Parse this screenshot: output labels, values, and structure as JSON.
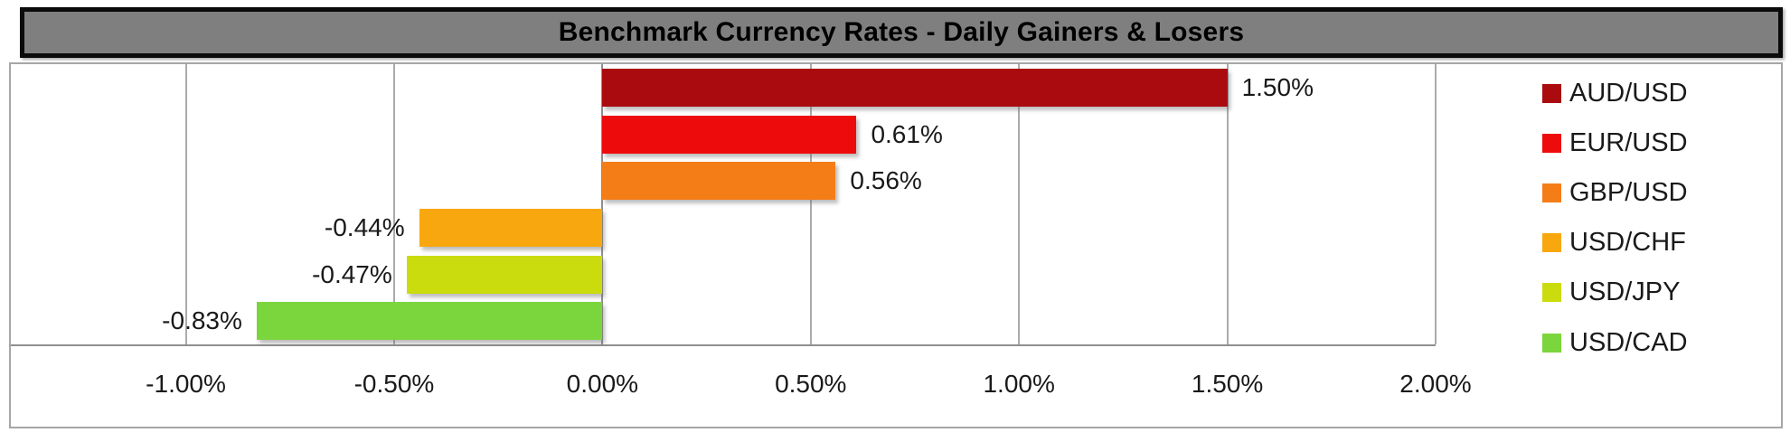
{
  "title": "Benchmark Currency Rates - Daily Gainers & Losers",
  "colors": {
    "title_bar_fill": "#7f7f7f",
    "title_bar_border": "#0b0b0b",
    "chart_border": "#a6a6a6",
    "gridline": "#ababab",
    "axis_line": "#8f8f8f",
    "label_text": "#191919"
  },
  "chart_data": {
    "type": "bar",
    "orientation": "horizontal",
    "title": "Benchmark Currency Rates - Daily Gainers & Losers",
    "categories": [
      "AUD/USD",
      "EUR/USD",
      "GBP/USD",
      "USD/CHF",
      "USD/JPY",
      "USD/CAD"
    ],
    "values": [
      1.5,
      0.61,
      0.56,
      -0.44,
      -0.47,
      -0.83
    ],
    "value_labels": [
      "1.50%",
      "0.61%",
      "0.56%",
      "-0.44%",
      "-0.47%",
      "-0.83%"
    ],
    "bar_colors": [
      "#aa0b0f",
      "#ee0b0c",
      "#f57d17",
      "#f9a70e",
      "#cbdc0e",
      "#7bd53c"
    ],
    "x_ticks": [
      "-1.00%",
      "-0.50%",
      "0.00%",
      "0.50%",
      "1.00%",
      "1.50%",
      "2.00%"
    ],
    "x_tick_values": [
      -1.0,
      -0.5,
      0.0,
      0.5,
      1.0,
      1.5,
      2.0
    ],
    "xlim": [
      -1.42,
      2.0
    ],
    "xlabel": "",
    "ylabel": "",
    "grid": true,
    "legend_position": "right",
    "legend_items": [
      {
        "label": "AUD/USD",
        "color": "#aa0b0f"
      },
      {
        "label": "EUR/USD",
        "color": "#ee0b0c"
      },
      {
        "label": "GBP/USD",
        "color": "#f57d17"
      },
      {
        "label": "USD/CHF",
        "color": "#f9a70e"
      },
      {
        "label": "USD/JPY",
        "color": "#cbdc0e"
      },
      {
        "label": "USD/CAD",
        "color": "#7bd53c"
      }
    ]
  }
}
